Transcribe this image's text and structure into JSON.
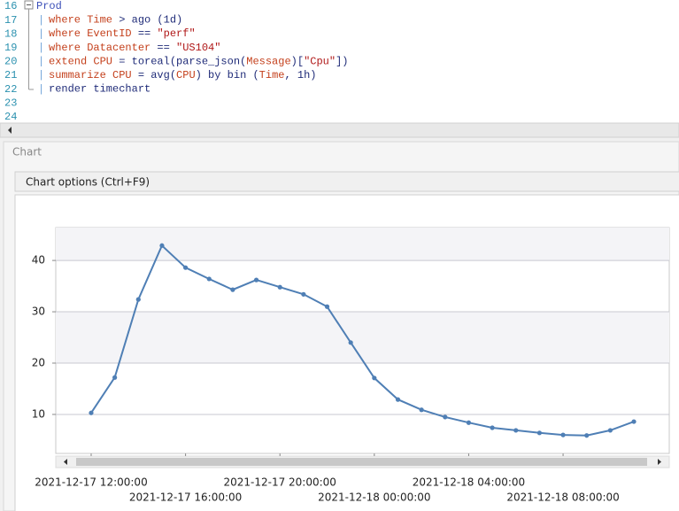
{
  "editor": {
    "lines": [
      {
        "number": "16",
        "tokens": [
          {
            "text": "Prod",
            "color": "#3b4fb8"
          }
        ]
      },
      {
        "number": "17",
        "pipe": "|",
        "tokens": [
          {
            "text": "where Time",
            "color": "#c4401c"
          },
          {
            "text": " > ago (1d)",
            "color": "#1f2b78"
          }
        ]
      },
      {
        "number": "18",
        "pipe": "|",
        "tokens": [
          {
            "text": "where EventID",
            "color": "#c4401c"
          },
          {
            "text": " == ",
            "color": "#1f2b78"
          },
          {
            "text": "\"perf\"",
            "color": "#b01818"
          }
        ]
      },
      {
        "number": "19",
        "pipe": "|",
        "tokens": [
          {
            "text": "where Datacenter",
            "color": "#c4401c"
          },
          {
            "text": " == ",
            "color": "#1f2b78"
          },
          {
            "text": "\"US104\"",
            "color": "#b01818"
          }
        ]
      },
      {
        "number": "20",
        "pipe": "|",
        "tokens": [
          {
            "text": "extend CPU",
            "color": "#c4401c"
          },
          {
            "text": " = toreal(parse_json(",
            "color": "#1f2b78"
          },
          {
            "text": "Message",
            "color": "#c4401c"
          },
          {
            "text": ")[",
            "color": "#1f2b78"
          },
          {
            "text": "\"Cpu\"",
            "color": "#b01818"
          },
          {
            "text": "])",
            "color": "#1f2b78"
          }
        ]
      },
      {
        "number": "21",
        "pipe": "|",
        "tokens": [
          {
            "text": "summarize CPU",
            "color": "#c4401c"
          },
          {
            "text": " = avg(",
            "color": "#1f2b78"
          },
          {
            "text": "CPU",
            "color": "#c4401c"
          },
          {
            "text": ") by bin (",
            "color": "#1f2b78"
          },
          {
            "text": "Time",
            "color": "#c4401c"
          },
          {
            "text": ", 1h)",
            "color": "#1f2b78"
          }
        ]
      },
      {
        "number": "22",
        "pipe": "|",
        "tokens": [
          {
            "text": "render timechart",
            "color": "#1f2b78"
          }
        ]
      },
      {
        "number": "23"
      },
      {
        "number": "24"
      }
    ]
  },
  "panel": {
    "title": "Chart",
    "options_button": "Chart options (Ctrl+F9)"
  },
  "chart_data": {
    "type": "line",
    "x": [
      "2021-12-17 12:00:00",
      "2021-12-17 13:00:00",
      "2021-12-17 14:00:00",
      "2021-12-17 15:00:00",
      "2021-12-17 16:00:00",
      "2021-12-17 17:00:00",
      "2021-12-17 18:00:00",
      "2021-12-17 19:00:00",
      "2021-12-17 20:00:00",
      "2021-12-17 21:00:00",
      "2021-12-17 22:00:00",
      "2021-12-17 23:00:00",
      "2021-12-18 00:00:00",
      "2021-12-18 01:00:00",
      "2021-12-18 02:00:00",
      "2021-12-18 03:00:00",
      "2021-12-18 04:00:00",
      "2021-12-18 05:00:00",
      "2021-12-18 06:00:00",
      "2021-12-18 07:00:00",
      "2021-12-18 08:00:00",
      "2021-12-18 09:00:00",
      "2021-12-18 10:00:00",
      "2021-12-18 11:00:00"
    ],
    "values": [
      10.3,
      17.2,
      32.4,
      42.9,
      38.6,
      36.4,
      34.3,
      36.2,
      34.8,
      33.4,
      31.0,
      24.0,
      17.1,
      12.9,
      10.9,
      9.5,
      8.4,
      7.4,
      6.9,
      6.4,
      6.0,
      5.9,
      6.9,
      8.6
    ],
    "color": "#4f7fb5",
    "xlim": [
      "2021-12-17 10:30:00",
      "2021-12-18 12:30:00"
    ],
    "xticks": [
      "2021-12-17 12:00:00",
      "2021-12-17 16:00:00",
      "2021-12-17 20:00:00",
      "2021-12-18 00:00:00",
      "2021-12-18 04:00:00",
      "2021-12-18 08:00:00"
    ],
    "ylim": [
      2.4,
      46.4
    ],
    "yticks": [
      10,
      20,
      30,
      40
    ],
    "grid": true
  }
}
